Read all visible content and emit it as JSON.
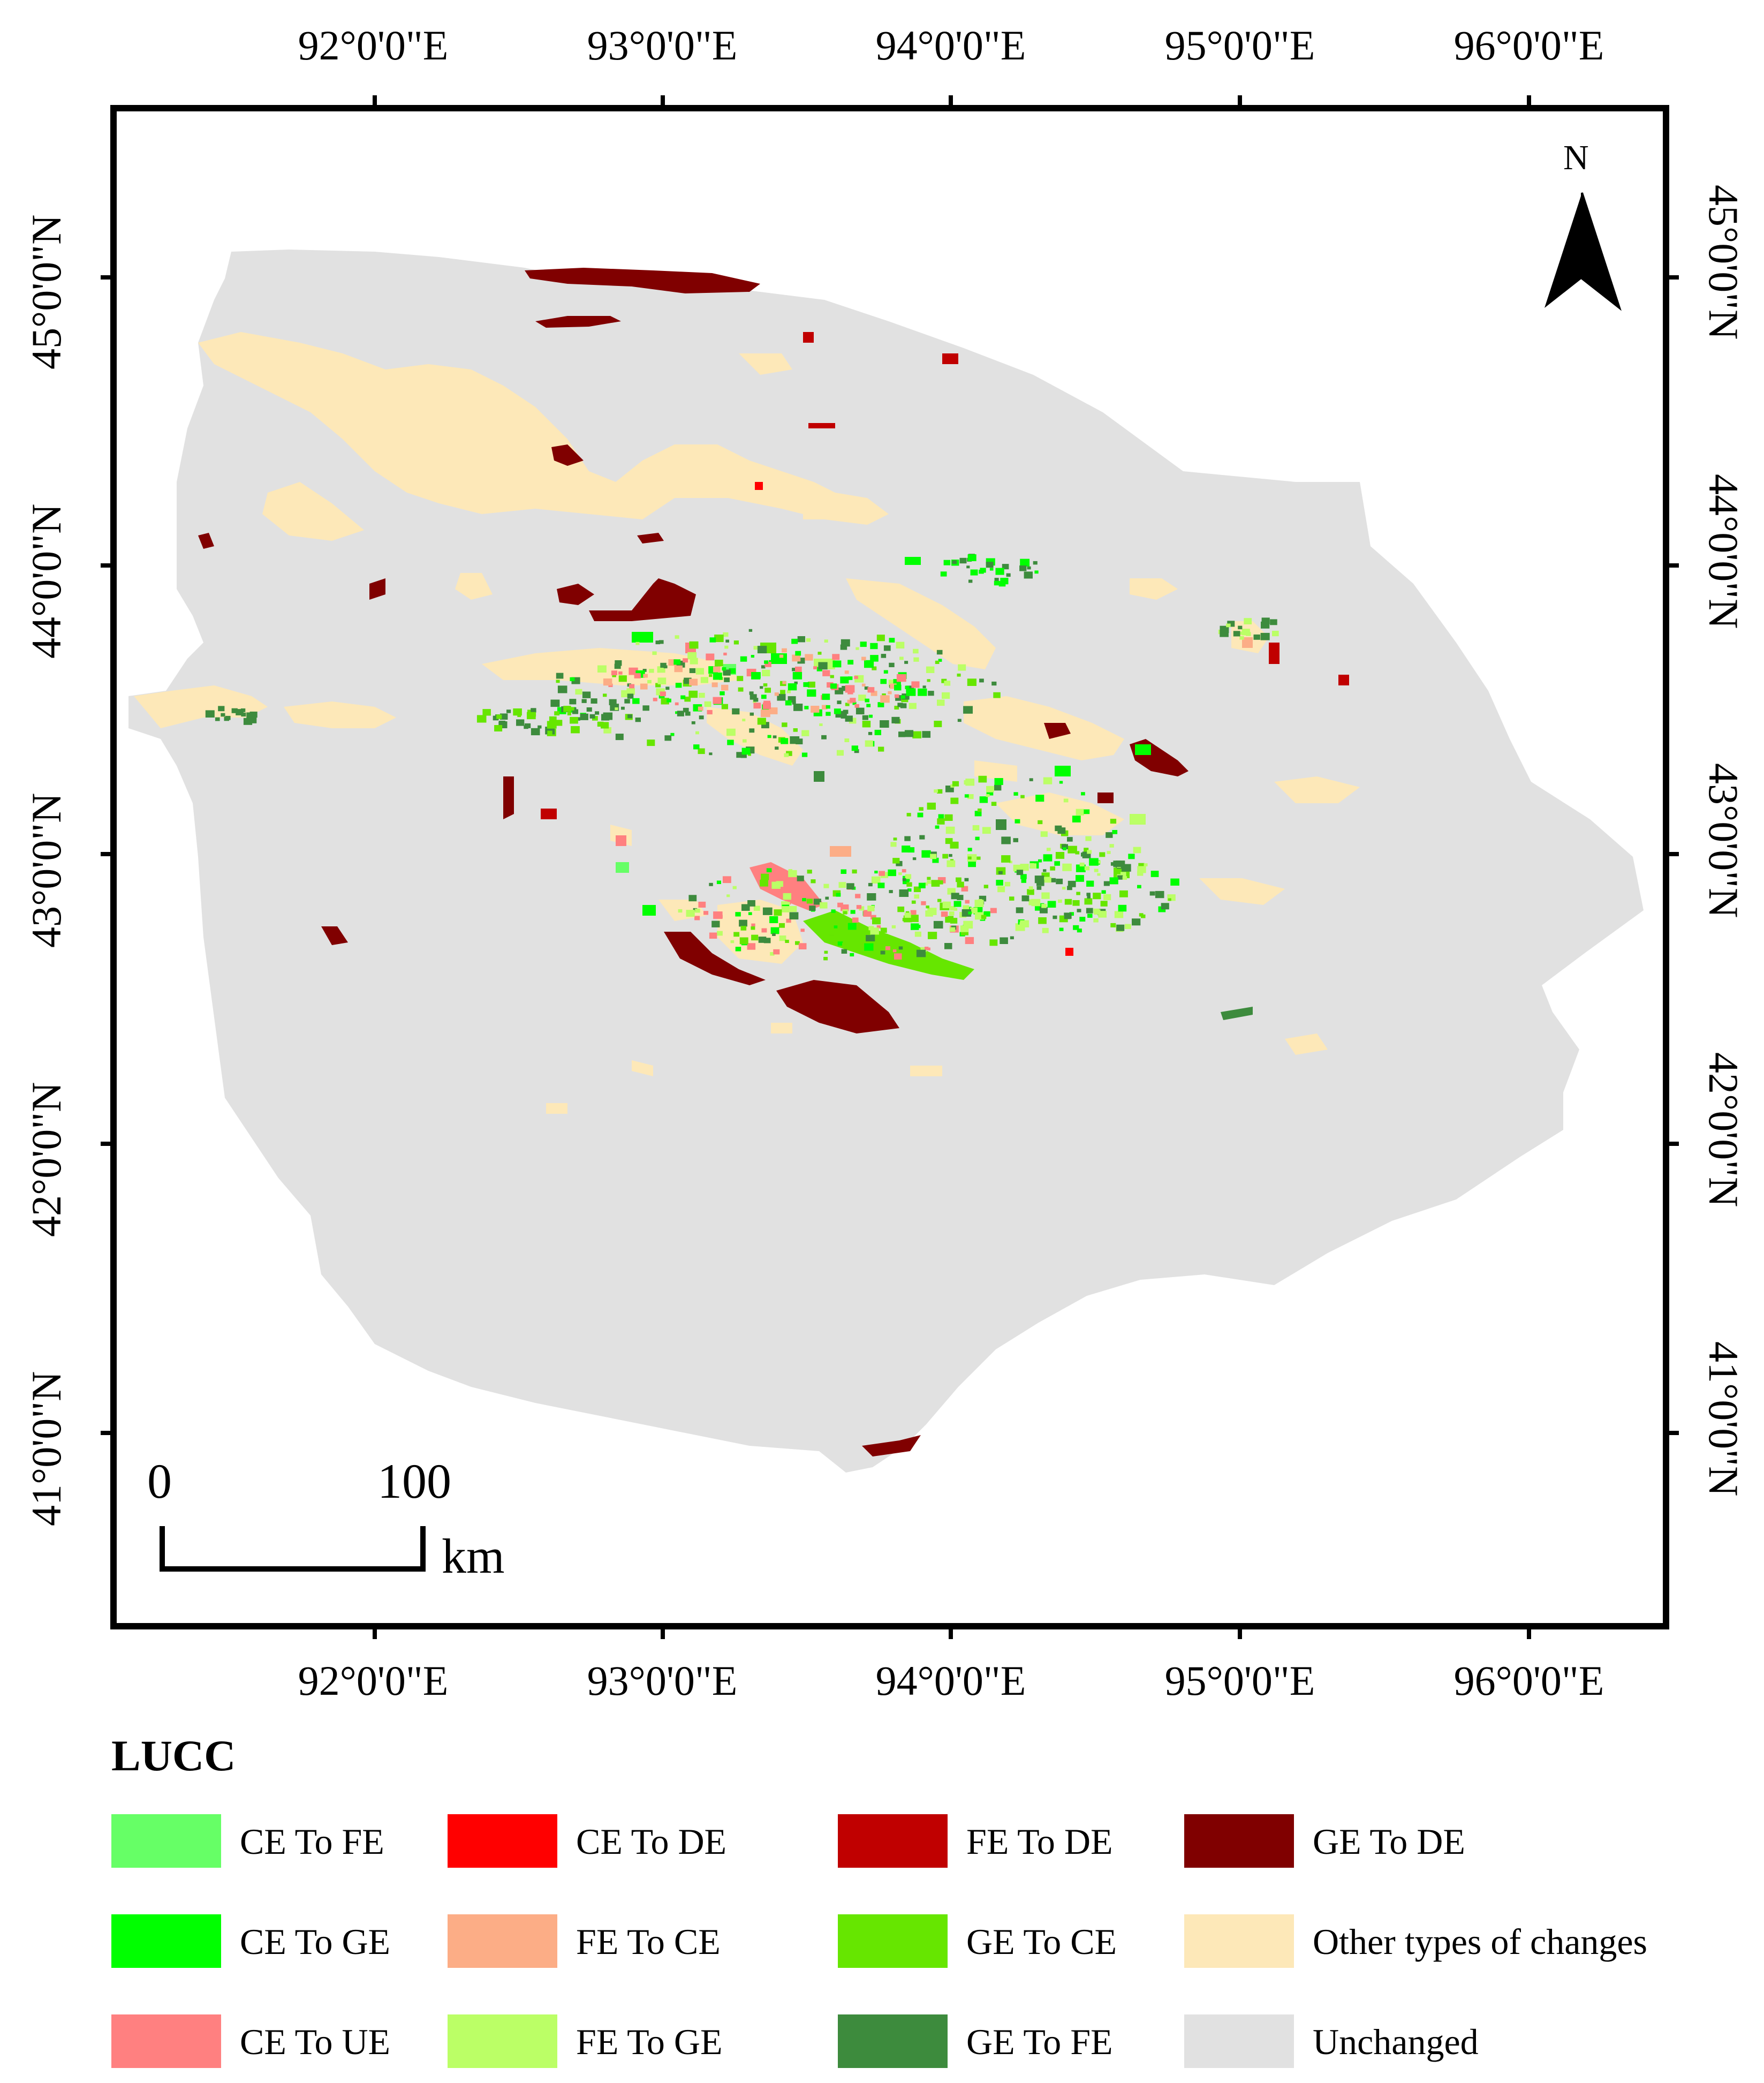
{
  "map": {
    "longitude_labels": [
      "92°0'0\"E",
      "93°0'0\"E",
      "94°0'0\"E",
      "95°0'0\"E",
      "96°0'0\"E"
    ],
    "latitude_labels": [
      "45°0'0\"N",
      "44°0'0\"N",
      "43°0'0\"N",
      "42°0'0\"N",
      "41°0'0\"N"
    ],
    "north_label": "N",
    "scale_bar": {
      "start": "0",
      "end": "100",
      "unit": "km"
    },
    "colors": {
      "background": "#e1e1e1",
      "ce_to_fe": "#66ff66",
      "ce_to_de": "#ff0000",
      "fe_to_de": "#c00000",
      "ge_to_de": "#800000",
      "ce_to_ge": "#00ff00",
      "fe_to_ce": "#fcad86",
      "ge_to_ce": "#66e600",
      "other": "#fde8b8",
      "ce_to_ue": "#ff8080",
      "fe_to_ge": "#bbff66",
      "ge_to_fe": "#3d8b3d",
      "unchanged": "#e1e1e1"
    }
  },
  "legend": {
    "title": "LUCC",
    "items": [
      {
        "label": "CE To FE",
        "color": "#66ff66"
      },
      {
        "label": "CE To DE",
        "color": "#ff0000"
      },
      {
        "label": "FE To DE",
        "color": "#c00000"
      },
      {
        "label": "GE To DE",
        "color": "#800000"
      },
      {
        "label": "CE To GE",
        "color": "#00ff00"
      },
      {
        "label": "FE To CE",
        "color": "#fcad86"
      },
      {
        "label": "GE To CE",
        "color": "#66e600"
      },
      {
        "label": "Other types of changes",
        "color": "#fde8b8"
      },
      {
        "label": "CE To UE",
        "color": "#ff8080"
      },
      {
        "label": "FE To GE",
        "color": "#bbff66"
      },
      {
        "label": "GE To FE",
        "color": "#3d8b3d"
      },
      {
        "label": "Unchanged",
        "color": "#e1e1e1"
      }
    ]
  }
}
